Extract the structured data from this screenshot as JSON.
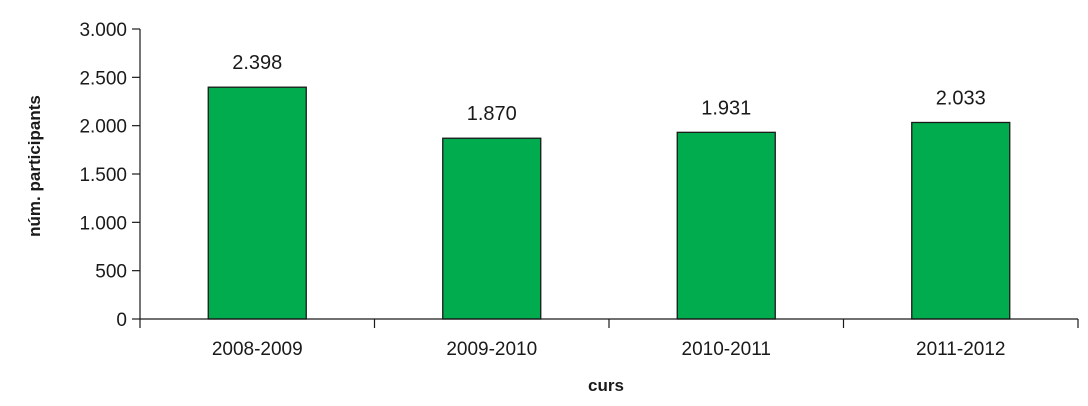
{
  "chart_data": {
    "type": "bar",
    "title": "",
    "xlabel": "curs",
    "ylabel": "núm. participants",
    "categories": [
      "2008-2009",
      "2009-2010",
      "2010-2011",
      "2011-2012"
    ],
    "values": [
      2398,
      1870,
      1931,
      2033
    ],
    "value_labels": [
      "2.398",
      "1.870",
      "1.931",
      "2.033"
    ],
    "ylim": [
      0,
      3000
    ],
    "yticks": [
      0,
      500,
      1000,
      1500,
      2000,
      2500,
      3000
    ],
    "ytick_labels": [
      "0",
      "500",
      "1.000",
      "1.500",
      "2.000",
      "2.500",
      "3.000"
    ],
    "grid": false,
    "legend": "none",
    "bar_color": "#00AC4E",
    "bar_edge_color": "#1a1a1a"
  }
}
